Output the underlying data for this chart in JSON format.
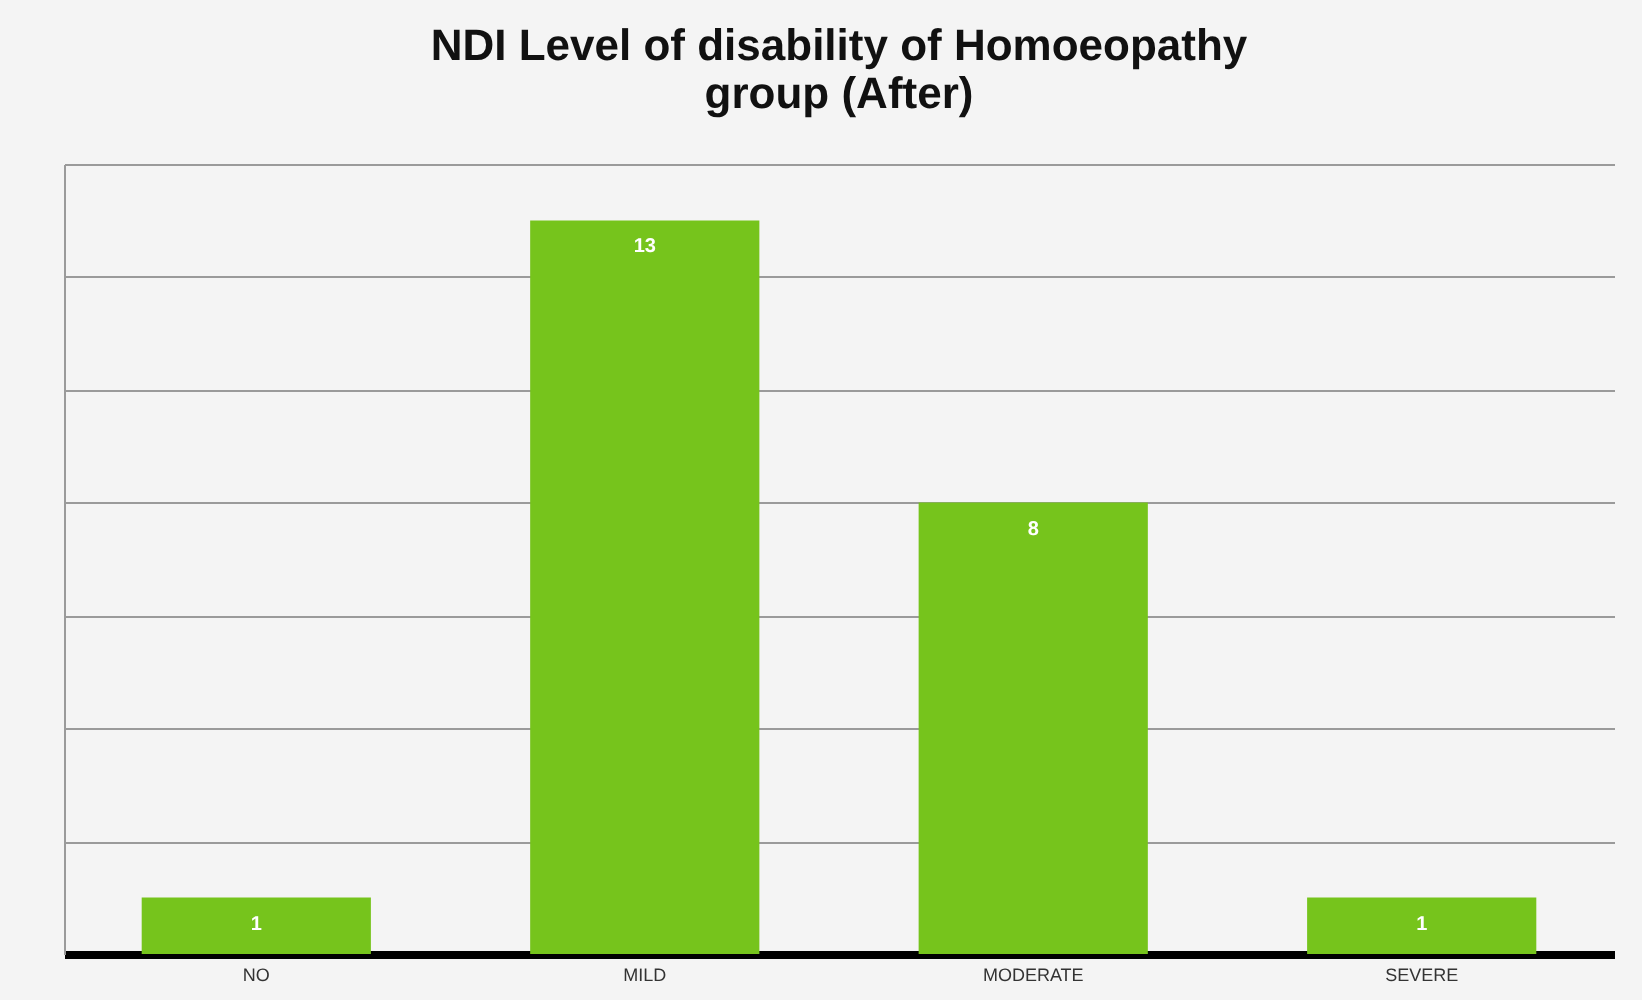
{
  "chart_data": {
    "type": "bar",
    "title": "NDI Level of disability of Homoeopathy group (After)",
    "categories": [
      "NO",
      "MILD",
      "MODERATE",
      "SEVERE"
    ],
    "values": [
      1,
      13,
      8,
      1
    ],
    "color": "#76c41c",
    "ylim": [
      0,
      14
    ],
    "yticks": [
      {
        "value": 0,
        "label": null
      },
      {
        "value": 2,
        "label": null
      },
      {
        "value": 4,
        "label": null
      },
      {
        "value": 6,
        "label": null
      },
      {
        "value": 8,
        "label": null
      },
      {
        "value": 10,
        "label": null
      },
      {
        "value": 12,
        "label": null
      },
      {
        "value": 14,
        "label": null
      }
    ],
    "grid": true,
    "data_labels": true
  }
}
